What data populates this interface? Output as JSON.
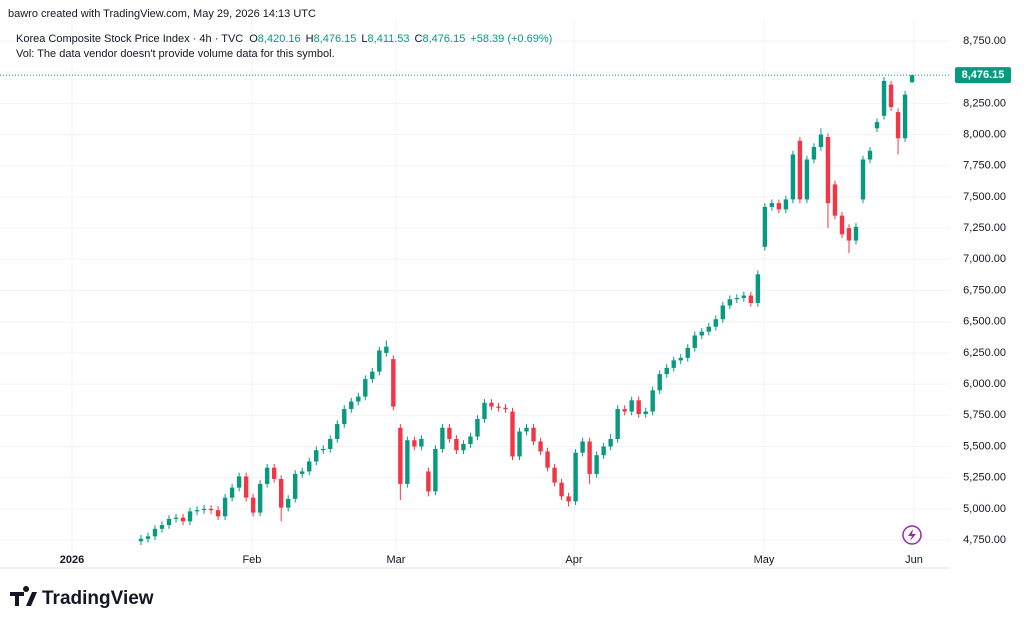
{
  "header": {
    "credit": "bawro created with TradingView.com, May 29, 2026 14:13 UTC"
  },
  "legend": {
    "symbol": "Korea Composite Stock Price Index · 4h · TVC",
    "o": "O",
    "open": "8,420.16",
    "h": "H",
    "high": "8,476.15",
    "l": "L",
    "low": "8,411.53",
    "c": "C",
    "close": "8,476.15",
    "change": "+58.39 (+0.69%)",
    "vol": "Vol: The data vendor doesn't provide volume data for this symbol."
  },
  "footer": {
    "logo": "TradingView"
  },
  "chart_data": {
    "type": "candlestick",
    "up_color": "#089981",
    "down_color": "#f23645",
    "grid": true,
    "open": [
      4740,
      4760,
      4780,
      4840,
      4870,
      4920,
      4930,
      4900,
      4980,
      4990,
      5000,
      4990,
      4940,
      5090,
      5170,
      5260,
      5090,
      4970,
      5200,
      5330,
      5240,
      5010,
      5080,
      5280,
      5300,
      5380,
      5470,
      5480,
      5560,
      5680,
      5800,
      5860,
      5900,
      6040,
      6100,
      6250,
      6200,
      5650,
      5200,
      5550,
      5500,
      5300,
      5140,
      5480,
      5650,
      5560,
      5470,
      5520,
      5580,
      5720,
      5850,
      5820,
      5810,
      5780,
      5420,
      5620,
      5650,
      5540,
      5460,
      5330,
      5210,
      5100,
      5060,
      5450,
      5540,
      5280,
      5430,
      5500,
      5560,
      5800,
      5780,
      5870,
      5760,
      5780,
      5950,
      6080,
      6130,
      6190,
      6210,
      6290,
      6390,
      6420,
      6460,
      6520,
      6630,
      6680,
      6690,
      6710,
      6650,
      7100,
      7420,
      7450,
      7400,
      7480,
      7950,
      7480,
      7800,
      7900,
      7980,
      7600,
      7350,
      7250,
      7150,
      7480,
      7800,
      8050,
      8150,
      8400,
      8180,
      7970,
      8420.16
    ],
    "high": [
      4790,
      4810,
      4870,
      4900,
      4950,
      4960,
      4960,
      5010,
      5020,
      5030,
      5030,
      5020,
      5120,
      5200,
      5290,
      5290,
      5120,
      5230,
      5360,
      5360,
      5270,
      5110,
      5310,
      5330,
      5410,
      5500,
      5510,
      5590,
      5710,
      5830,
      5890,
      5930,
      6070,
      6130,
      6300,
      6350,
      6230,
      5680,
      5580,
      5580,
      5590,
      5330,
      5510,
      5680,
      5680,
      5590,
      5550,
      5610,
      5750,
      5880,
      5880,
      5850,
      5840,
      5810,
      5650,
      5680,
      5680,
      5570,
      5490,
      5360,
      5240,
      5130,
      5480,
      5570,
      5570,
      5460,
      5530,
      5600,
      5830,
      5830,
      5900,
      5900,
      5810,
      5980,
      6110,
      6160,
      6220,
      6240,
      6320,
      6420,
      6450,
      6490,
      6550,
      6660,
      6710,
      6720,
      6740,
      6740,
      6910,
      7450,
      7480,
      7480,
      7510,
      7870,
      7980,
      7830,
      7930,
      8050,
      8010,
      7630,
      7380,
      7280,
      7290,
      7830,
      7900,
      8130,
      8460,
      8430,
      8210,
      8350,
      8476.15
    ],
    "low": [
      4710,
      4730,
      4750,
      4810,
      4840,
      4890,
      4870,
      4870,
      4950,
      4960,
      4960,
      4910,
      4910,
      5060,
      5140,
      5060,
      4940,
      4940,
      5170,
      5210,
      4900,
      4980,
      5050,
      5250,
      5270,
      5350,
      5440,
      5450,
      5530,
      5650,
      5770,
      5830,
      5870,
      6010,
      6070,
      6220,
      5790,
      5070,
      5170,
      5470,
      5470,
      5100,
      5110,
      5450,
      5530,
      5440,
      5440,
      5490,
      5550,
      5690,
      5790,
      5780,
      5770,
      5390,
      5390,
      5590,
      5510,
      5430,
      5300,
      5180,
      5070,
      5020,
      5030,
      5420,
      5200,
      5250,
      5400,
      5470,
      5530,
      5750,
      5750,
      5730,
      5730,
      5750,
      5920,
      6050,
      6100,
      6160,
      6180,
      6260,
      6360,
      6390,
      6430,
      6490,
      6600,
      6650,
      6660,
      6620,
      6620,
      7070,
      7390,
      7370,
      7370,
      7450,
      7450,
      7450,
      7770,
      7870,
      7250,
      7320,
      7170,
      7050,
      7120,
      7450,
      7770,
      8020,
      8120,
      8190,
      7840,
      7940,
      8411.53
    ],
    "close": [
      4760,
      4780,
      4840,
      4870,
      4920,
      4930,
      4900,
      4980,
      4990,
      5000,
      4990,
      4940,
      5090,
      5170,
      5260,
      5090,
      4970,
      5200,
      5330,
      5240,
      5010,
      5080,
      5280,
      5300,
      5380,
      5470,
      5480,
      5560,
      5680,
      5800,
      5860,
      5900,
      6040,
      6100,
      6270,
      6300,
      5820,
      5200,
      5550,
      5500,
      5560,
      5140,
      5480,
      5650,
      5560,
      5470,
      5520,
      5580,
      5720,
      5850,
      5820,
      5810,
      5800,
      5420,
      5620,
      5650,
      5540,
      5460,
      5330,
      5210,
      5100,
      5060,
      5450,
      5540,
      5280,
      5430,
      5500,
      5560,
      5800,
      5780,
      5870,
      5760,
      5780,
      5950,
      6080,
      6130,
      6190,
      6210,
      6290,
      6390,
      6420,
      6460,
      6520,
      6630,
      6680,
      6690,
      6710,
      6650,
      6880,
      7420,
      7450,
      7400,
      7480,
      7840,
      7480,
      7800,
      7900,
      8000,
      7450,
      7350,
      7200,
      7150,
      7260,
      7800,
      7870,
      8100,
      8430,
      8220,
      7970,
      8320,
      8476.15
    ],
    "xlim": [
      -20.11,
      115.41
    ],
    "xticks": [
      {
        "value": -9.84,
        "label": "2026"
      },
      {
        "value": 15.83,
        "label": "Feb"
      },
      {
        "value": 36.38,
        "label": "Mar"
      },
      {
        "value": 61.77,
        "label": "Apr"
      },
      {
        "value": 88.87,
        "label": "May"
      },
      {
        "value": 110.27,
        "label": "Jun"
      }
    ],
    "ylim": [
      4526,
      8918
    ],
    "yticks": [
      {
        "value": 4750,
        "label": "4,750.00"
      },
      {
        "value": 5000,
        "label": "5,000.00"
      },
      {
        "value": 5250,
        "label": "5,250.00"
      },
      {
        "value": 5500,
        "label": "5,500.00"
      },
      {
        "value": 5750,
        "label": "5,750.00"
      },
      {
        "value": 6000,
        "label": "6,000.00"
      },
      {
        "value": 6250,
        "label": "6,250.00"
      },
      {
        "value": 6500,
        "label": "6,500.00"
      },
      {
        "value": 6750,
        "label": "6,750.00"
      },
      {
        "value": 7000,
        "label": "7,000.00"
      },
      {
        "value": 7250,
        "label": "7,250.00"
      },
      {
        "value": 7500,
        "label": "7,500.00"
      },
      {
        "value": 7750,
        "label": "7,750.00"
      },
      {
        "value": 8000,
        "label": "8,000.00"
      },
      {
        "value": 8250,
        "label": "8,250.00"
      },
      {
        "value": 8500,
        "label": "8,500.00"
      },
      {
        "value": 8750,
        "label": "8,750.00"
      }
    ],
    "last_price": {
      "value": 8476.15,
      "label": "8,476.15"
    }
  }
}
